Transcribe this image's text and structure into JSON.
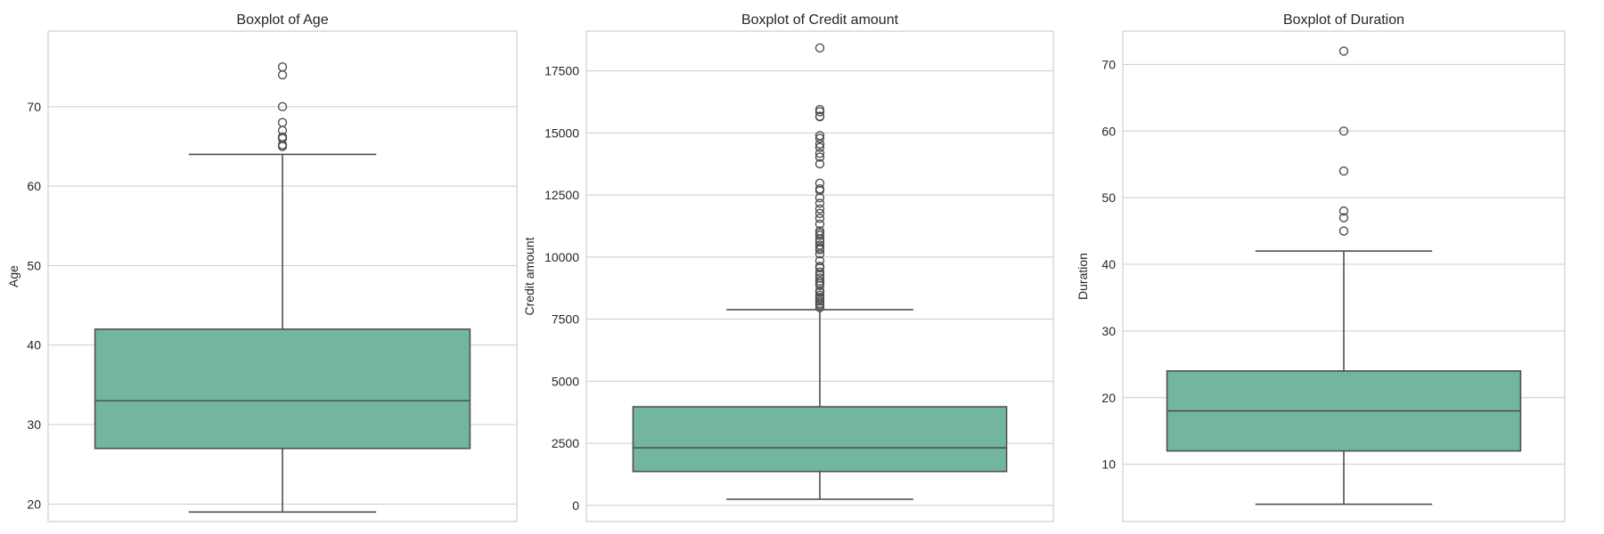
{
  "chart_data": [
    {
      "type": "box",
      "title": "Boxplot of Age",
      "xlabel": "",
      "ylabel": "Age",
      "ylim": [
        17.8,
        79.5
      ],
      "yticks": [
        20,
        30,
        40,
        50,
        60,
        70
      ],
      "tick_labels": [
        "20",
        "30",
        "40",
        "50",
        "60",
        "70"
      ],
      "grid": true,
      "box": {
        "min": 19,
        "q1": 27,
        "median": 33,
        "q3": 42,
        "max": 64,
        "outliers": [
          65,
          65.2,
          66,
          66.2,
          67,
          68,
          70,
          74,
          75
        ]
      }
    },
    {
      "type": "box",
      "title": "Boxplot of Credit amount",
      "xlabel": "",
      "ylabel": "Credit amount",
      "ylim": [
        -650,
        19100
      ],
      "yticks": [
        0,
        2500,
        5000,
        7500,
        10000,
        12500,
        15000,
        17500
      ],
      "tick_labels": [
        "0",
        "2500",
        "5000",
        "7500",
        "10000",
        "12500",
        "15000",
        "17500"
      ],
      "grid": true,
      "box": {
        "min": 250,
        "q1": 1366,
        "median": 2320,
        "q3": 3972,
        "max": 7882,
        "outliers": [
          7966,
          8065,
          8133,
          8229,
          8318,
          8386,
          8471,
          8588,
          8648,
          8858,
          8947,
          9034,
          9157,
          9271,
          9398,
          9566,
          9629,
          9857,
          10127,
          10297,
          10366,
          10477,
          10623,
          10722,
          10875,
          10961,
          11054,
          11328,
          11560,
          11760,
          11938,
          12169,
          12389,
          12680,
          12749,
          12976,
          13756,
          14027,
          14179,
          14421,
          14555,
          14782,
          14896,
          15653,
          15672,
          15857,
          15945,
          18424
        ]
      }
    },
    {
      "type": "box",
      "title": "Boxplot of Duration",
      "xlabel": "",
      "ylabel": "Duration",
      "ylim": [
        1.4,
        75.0
      ],
      "yticks": [
        10,
        20,
        30,
        40,
        50,
        60,
        70
      ],
      "tick_labels": [
        "10",
        "20",
        "30",
        "40",
        "50",
        "60",
        "70"
      ],
      "grid": true,
      "box": {
        "min": 4,
        "q1": 12,
        "median": 18,
        "q3": 24,
        "max": 42,
        "outliers": [
          45,
          47,
          48,
          54,
          60,
          72
        ]
      }
    }
  ],
  "style": {
    "box_color": "#72b6a1",
    "line_color": "#505050",
    "grid_color": "#cccccc",
    "frame_color": "#cfcfcf",
    "text_color": "#262626"
  }
}
